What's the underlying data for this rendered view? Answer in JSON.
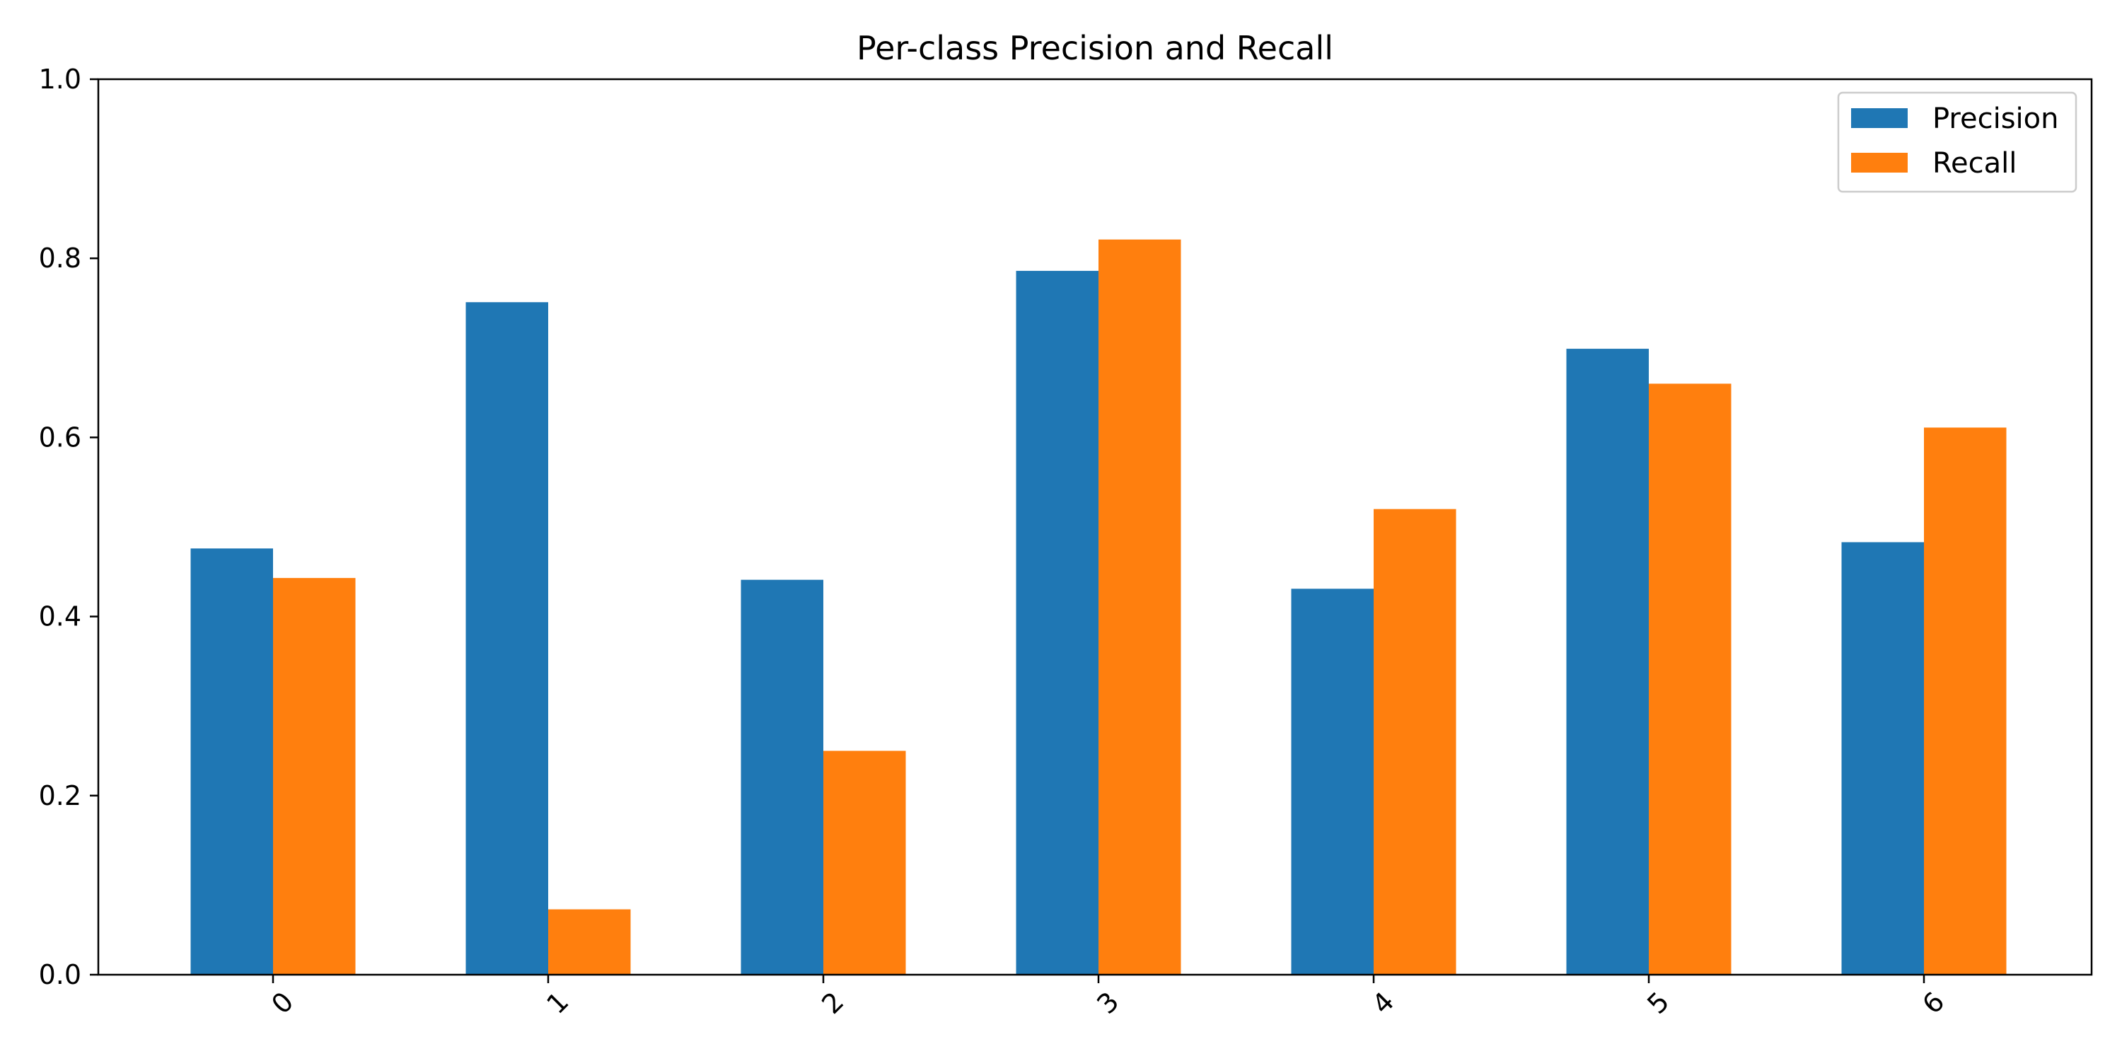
{
  "chart_data": {
    "type": "bar",
    "title": "Per-class Precision and Recall",
    "xlabel": "",
    "ylabel": "",
    "categories": [
      "0",
      "1",
      "2",
      "3",
      "4",
      "5",
      "6"
    ],
    "series": [
      {
        "name": "Precision",
        "color": "#1f77b4",
        "values": [
          0.476,
          0.751,
          0.441,
          0.786,
          0.431,
          0.699,
          0.483
        ]
      },
      {
        "name": "Recall",
        "color": "#ff7f0e",
        "values": [
          0.443,
          0.073,
          0.25,
          0.821,
          0.52,
          0.66,
          0.611
        ]
      }
    ],
    "ylim": [
      0,
      1.0
    ],
    "yticks": [
      "0.0",
      "0.2",
      "0.4",
      "0.6",
      "0.8",
      "1.0"
    ],
    "grid": false,
    "legend_position": "top-right",
    "xtick_rotation": "45 degrees"
  }
}
